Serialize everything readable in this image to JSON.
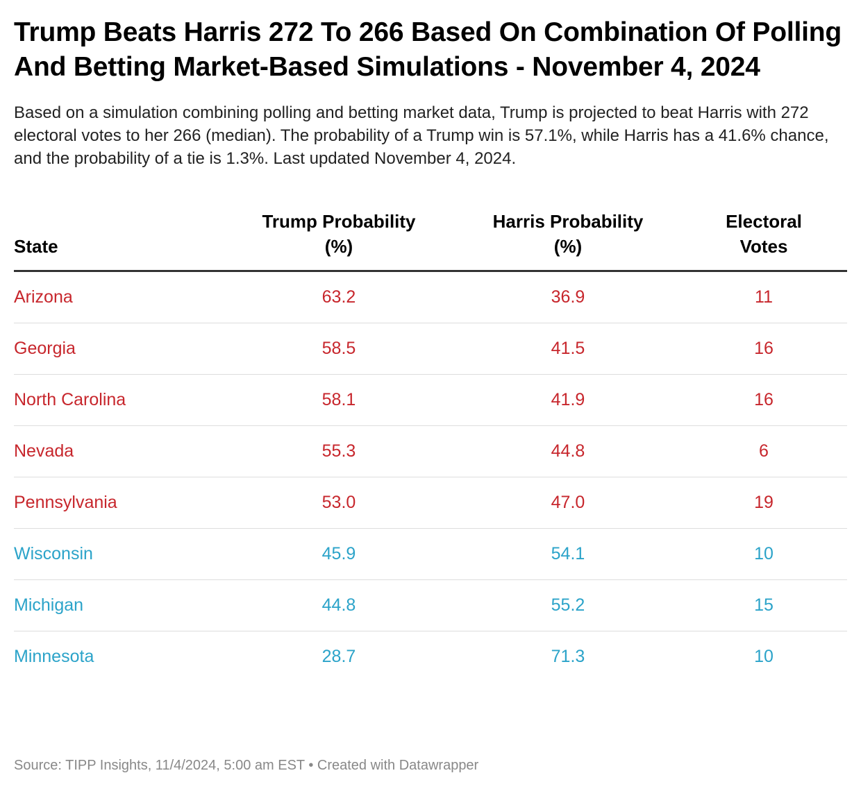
{
  "title": "Trump Beats Harris 272 To 266 Based On Combination Of Polling And Betting Market-Based Simulations - November 4, 2024",
  "description": "Based on a simulation combining polling and betting market data, Trump is projected to beat Harris with 272 electoral votes to her 266 (median). The probability of a Trump win is 57.1%, while Harris has a 41.6% chance, and the probability of a tie is 1.3%. Last updated November 4, 2024.",
  "footer": "Source: TIPP Insights, 11/4/2024, 5:00 am EST • Created with Datawrapper",
  "colors": {
    "trump": "#c7262c",
    "harris": "#2ba3c9"
  },
  "chart_data": {
    "type": "table",
    "columns": [
      "State",
      "Trump Probability (%)",
      "Harris Probability (%)",
      "Electoral Votes"
    ],
    "rows": [
      {
        "state": "Arizona",
        "trump": "63.2",
        "harris": "36.9",
        "ev": "11",
        "lean": "trump"
      },
      {
        "state": "Georgia",
        "trump": "58.5",
        "harris": "41.5",
        "ev": "16",
        "lean": "trump"
      },
      {
        "state": "North Carolina",
        "trump": "58.1",
        "harris": "41.9",
        "ev": "16",
        "lean": "trump"
      },
      {
        "state": "Nevada",
        "trump": "55.3",
        "harris": "44.8",
        "ev": "6",
        "lean": "trump"
      },
      {
        "state": "Pennsylvania",
        "trump": "53.0",
        "harris": "47.0",
        "ev": "19",
        "lean": "trump"
      },
      {
        "state": "Wisconsin",
        "trump": "45.9",
        "harris": "54.1",
        "ev": "10",
        "lean": "harris"
      },
      {
        "state": "Michigan",
        "trump": "44.8",
        "harris": "55.2",
        "ev": "15",
        "lean": "harris"
      },
      {
        "state": "Minnesota",
        "trump": "28.7",
        "harris": "71.3",
        "ev": "10",
        "lean": "harris"
      }
    ]
  }
}
